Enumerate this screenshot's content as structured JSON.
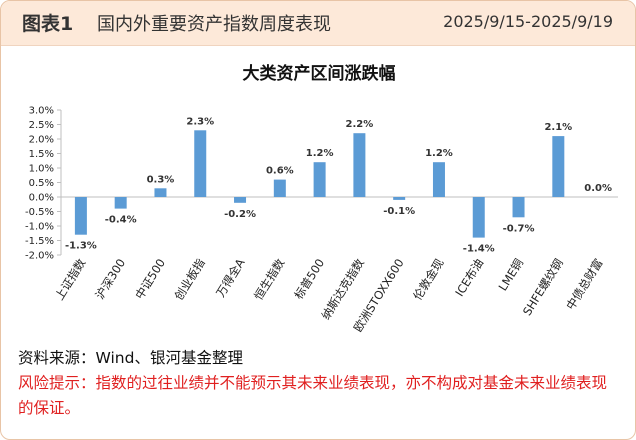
{
  "header": {
    "figure_label": "图表1",
    "figure_title": "国内外重要资产指数周度表现",
    "date_range": "2025/9/15-2025/9/19"
  },
  "chart_data": {
    "type": "bar",
    "title": "大类资产区间涨跌幅",
    "categories": [
      "上证指数",
      "沪深300",
      "中证500",
      "创业板指",
      "万得全A",
      "恒生指数",
      "标普500",
      "纳斯达克指数",
      "欧洲STOXX600",
      "伦敦金现",
      "ICE布油",
      "LME铜",
      "SHFE螺纹钢",
      "中债总财富"
    ],
    "values": [
      -1.3,
      -0.4,
      0.3,
      2.3,
      -0.2,
      0.6,
      1.2,
      2.2,
      -0.1,
      1.2,
      -1.4,
      -0.7,
      2.1,
      0.0
    ],
    "data_labels": [
      "-1.3%",
      "-0.4%",
      "0.3%",
      "2.3%",
      "-0.2%",
      "0.6%",
      "1.2%",
      "2.2%",
      "-0.1%",
      "1.2%",
      "-1.4%",
      "-0.7%",
      "2.1%",
      "0.0%"
    ],
    "y_ticks": [
      "3.0%",
      "2.5%",
      "2.0%",
      "1.5%",
      "1.0%",
      "0.5%",
      "0.0%",
      "-0.5%",
      "-1.0%",
      "-1.5%",
      "-2.0%"
    ],
    "ylim": [
      -2.0,
      3.0
    ],
    "bar_color": "#5b9bd5",
    "grid": false,
    "legend": "none"
  },
  "footer": {
    "source": "资料来源：Wind、银河基金整理",
    "risk_notice": "风险提示：指数的过往业绩并不能预示其未来业绩表现，亦不构成对基金未来业绩表现的保证。"
  }
}
